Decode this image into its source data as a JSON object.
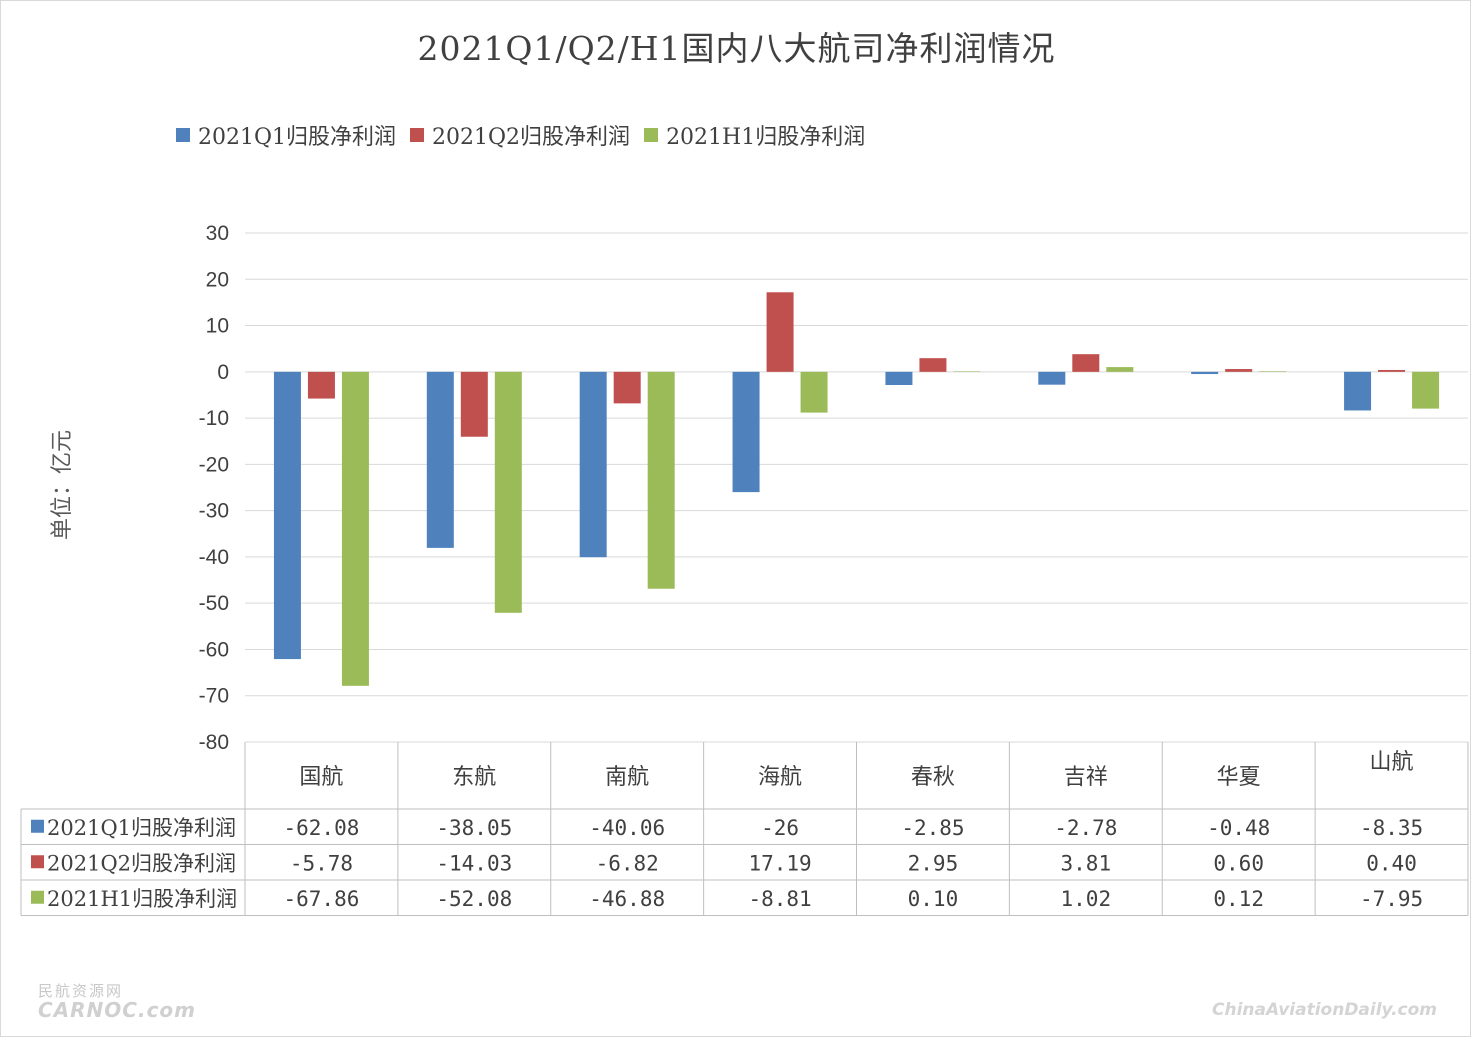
{
  "title": "2021Q1/Q2/H1国内八大航司净利润情况",
  "ylabel": "单位：亿元",
  "watermark": {
    "left_top": "民航资源网",
    "left_bottom": "CARNOC.com",
    "right": "ChinaAviationDaily.com"
  },
  "colors": {
    "q1": "#4f81bd",
    "q2": "#c0504d",
    "h1": "#9bbb59"
  },
  "chart_data": {
    "type": "bar",
    "title": "2021Q1/Q2/H1国内八大航司净利润情况",
    "xlabel": "",
    "ylabel": "单位：亿元",
    "ylim": [
      -80,
      30
    ],
    "yticks": [
      30,
      20,
      10,
      0,
      -10,
      -20,
      -30,
      -40,
      -50,
      -60,
      -70,
      -80
    ],
    "grid": true,
    "legend_position": "top-left",
    "categories": [
      "国航",
      "东航",
      "南航",
      "海航",
      "春秋",
      "吉祥",
      "华夏",
      "山航"
    ],
    "series": [
      {
        "name": "2021Q1归股净利润",
        "values": [
          -62.08,
          -38.05,
          -40.06,
          -26,
          -2.85,
          -2.78,
          -0.48,
          -8.35
        ],
        "labels": [
          "-62.08",
          "-38.05",
          "-40.06",
          "-26",
          "-2.85",
          "-2.78",
          "-0.48",
          "-8.35"
        ]
      },
      {
        "name": "2021Q2归股净利润",
        "values": [
          -5.78,
          -14.03,
          -6.82,
          17.19,
          2.95,
          3.81,
          0.6,
          0.4
        ],
        "labels": [
          "-5.78",
          "-14.03",
          "-6.82",
          "17.19",
          "2.95",
          "3.81",
          "0.60",
          "0.40"
        ]
      },
      {
        "name": "2021H1归股净利润",
        "values": [
          -67.86,
          -52.08,
          -46.88,
          -8.81,
          0.1,
          1.02,
          0.12,
          -7.95
        ],
        "labels": [
          "-67.86",
          "-52.08",
          "-46.88",
          "-8.81",
          "0.10",
          "1.02",
          "0.12",
          "-7.95"
        ]
      }
    ]
  }
}
